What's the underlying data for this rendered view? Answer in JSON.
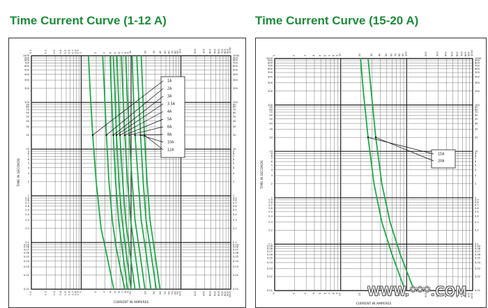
{
  "titles": {
    "left": "Time Current Curve (1-12 A)",
    "right": "Time Current Curve (15-20 A)"
  },
  "watermark": "WWW.***.COM",
  "colors": {
    "curve": "#1fa84a",
    "grid_major": "#222222",
    "grid_minor": "#777777",
    "title": "#1f8a3b"
  },
  "chart_data": [
    {
      "type": "line",
      "title": "Time Current Curve (1-12 A)",
      "xlabel": "CURRENT IN AMPERES",
      "ylabel": "TIME IN SECONDS",
      "xscale": "log",
      "yscale": "log",
      "xlim": [
        0.1,
        1000
      ],
      "ylim": [
        0.01,
        1000
      ],
      "x_ticks": [
        0.1,
        0.2,
        0.3,
        0.4,
        0.5,
        0.6,
        0.7,
        0.8,
        0.9,
        1,
        2,
        3,
        4,
        5,
        6,
        7,
        8,
        9,
        10,
        20,
        30,
        40,
        50,
        60,
        70,
        80,
        90,
        100,
        200,
        300,
        400,
        500,
        600,
        700,
        800,
        900,
        1000
      ],
      "y_ticks": [
        0.01,
        0.02,
        0.03,
        0.04,
        0.05,
        0.06,
        0.07,
        0.08,
        0.09,
        0.1,
        0.2,
        0.3,
        0.4,
        0.5,
        0.6,
        0.7,
        0.8,
        0.9,
        1,
        2,
        3,
        4,
        5,
        6,
        7,
        8,
        9,
        10,
        20,
        30,
        40,
        50,
        60,
        70,
        80,
        90,
        100,
        200,
        300,
        400,
        500,
        600,
        700,
        800,
        900,
        1000
      ],
      "grid": true,
      "legend_position": "top-right",
      "series": [
        {
          "name": "1A",
          "points": [
            [
              1.4,
              1000
            ],
            [
              1.5,
              200
            ],
            [
              1.7,
              20
            ],
            [
              2.0,
              2
            ],
            [
              2.5,
              0.2
            ],
            [
              3.2,
              0.06
            ],
            [
              4.5,
              0.01
            ]
          ]
        },
        {
          "name": "2A",
          "points": [
            [
              2.7,
              1000
            ],
            [
              2.9,
              200
            ],
            [
              3.2,
              20
            ],
            [
              3.6,
              2
            ],
            [
              4.2,
              0.3
            ],
            [
              5.0,
              0.08
            ],
            [
              6.5,
              0.02
            ],
            [
              7.5,
              0.01
            ]
          ]
        },
        {
          "name": "3A",
          "points": [
            [
              3.8,
              1000
            ],
            [
              4.0,
              200
            ],
            [
              4.4,
              20
            ],
            [
              4.9,
              2
            ],
            [
              5.6,
              0.3
            ],
            [
              6.8,
              0.06
            ],
            [
              8.5,
              0.01
            ]
          ]
        },
        {
          "name": "3.5A",
          "points": [
            [
              4.4,
              1000
            ],
            [
              4.7,
              200
            ],
            [
              5.1,
              20
            ],
            [
              5.7,
              2
            ],
            [
              6.6,
              0.3
            ],
            [
              8.0,
              0.06
            ],
            [
              10,
              0.01
            ]
          ]
        },
        {
          "name": "4A",
          "points": [
            [
              5.2,
              1000
            ],
            [
              5.5,
              200
            ],
            [
              6.0,
              20
            ],
            [
              6.8,
              2
            ],
            [
              7.8,
              0.3
            ],
            [
              9.5,
              0.06
            ],
            [
              12,
              0.01
            ]
          ]
        },
        {
          "name": "5A",
          "points": [
            [
              6.4,
              1000
            ],
            [
              6.8,
              200
            ],
            [
              7.5,
              20
            ],
            [
              8.5,
              2
            ],
            [
              9.8,
              0.3
            ],
            [
              12,
              0.06
            ],
            [
              15,
              0.01
            ]
          ]
        },
        {
          "name": "6A",
          "points": [
            [
              7.8,
              1000
            ],
            [
              8.3,
              200
            ],
            [
              9.2,
              20
            ],
            [
              10.5,
              2
            ],
            [
              12,
              0.3
            ],
            [
              15,
              0.06
            ],
            [
              19,
              0.01
            ]
          ]
        },
        {
          "name": "8A",
          "points": [
            [
              10.5,
              1000
            ],
            [
              11,
              200
            ],
            [
              12,
              20
            ],
            [
              14,
              2
            ],
            [
              16,
              0.3
            ],
            [
              20,
              0.06
            ],
            [
              25,
              0.01
            ]
          ]
        },
        {
          "name": "10A",
          "points": [
            [
              13,
              1000
            ],
            [
              14,
              200
            ],
            [
              15.5,
              20
            ],
            [
              17.5,
              2
            ],
            [
              20,
              0.3
            ],
            [
              25,
              0.06
            ],
            [
              32,
              0.01
            ]
          ]
        },
        {
          "name": "12A",
          "points": [
            [
              16,
              1000
            ],
            [
              17,
              200
            ],
            [
              18.5,
              20
            ],
            [
              21,
              2
            ],
            [
              24,
              0.3
            ],
            [
              30,
              0.06
            ],
            [
              38,
              0.01
            ]
          ]
        }
      ]
    },
    {
      "type": "line",
      "title": "Time Current Curve (15-20 A)",
      "xlabel": "CURRENT IN AMPERES",
      "ylabel": "TIME IN SECONDS",
      "xscale": "log",
      "yscale": "log",
      "xlim": [
        1,
        1000
      ],
      "ylim": [
        0.01,
        1000
      ],
      "x_ticks": [
        1,
        2,
        3,
        4,
        5,
        6,
        7,
        8,
        9,
        10,
        20,
        30,
        40,
        50,
        60,
        70,
        80,
        90,
        100,
        200,
        300,
        400,
        500,
        600,
        700,
        800,
        900,
        1000
      ],
      "y_ticks": [
        0.01,
        0.02,
        0.03,
        0.04,
        0.05,
        0.06,
        0.07,
        0.08,
        0.09,
        0.1,
        0.2,
        0.3,
        0.4,
        0.5,
        0.6,
        0.7,
        0.8,
        0.9,
        1,
        2,
        3,
        4,
        5,
        6,
        7,
        8,
        9,
        10,
        20,
        30,
        40,
        50,
        60,
        70,
        80,
        90,
        100,
        200,
        300,
        400,
        500,
        600,
        700,
        800,
        900,
        1000
      ],
      "grid": true,
      "legend_position": "center-right",
      "series": [
        {
          "name": "15A",
          "points": [
            [
              20,
              1000
            ],
            [
              22,
              200
            ],
            [
              26,
              20
            ],
            [
              32,
              2
            ],
            [
              42,
              0.3
            ],
            [
              60,
              0.06
            ],
            [
              95,
              0.01
            ]
          ]
        },
        {
          "name": "20A",
          "points": [
            [
              26,
              1000
            ],
            [
              29,
              200
            ],
            [
              34,
              20
            ],
            [
              42,
              2
            ],
            [
              56,
              0.3
            ],
            [
              80,
              0.06
            ],
            [
              130,
              0.01
            ]
          ]
        }
      ]
    }
  ]
}
